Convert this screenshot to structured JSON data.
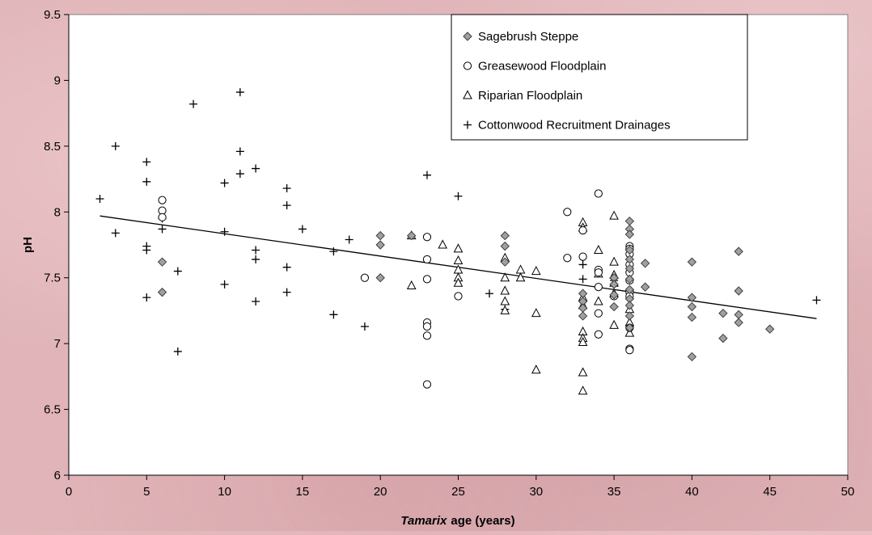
{
  "chart_data": {
    "type": "scatter",
    "title": "",
    "xlabel": "age (years)",
    "xlabel_italic_prefix": "Tamarix",
    "ylabel": "pH",
    "xlim": [
      0,
      50
    ],
    "ylim": [
      6,
      9.5
    ],
    "x_ticks": [
      "0",
      "5",
      "10",
      "15",
      "20",
      "25",
      "30",
      "35",
      "40",
      "45",
      "50"
    ],
    "y_ticks": [
      "6",
      "6.5",
      "7",
      "7.5",
      "8",
      "8.5",
      "9",
      "9.5"
    ],
    "grid": false,
    "legend_position": "top-right",
    "trendline": {
      "x": [
        2,
        48
      ],
      "y": [
        7.97,
        7.19
      ]
    },
    "series": [
      {
        "name": "Sagebrush Steppe",
        "marker": "diamond",
        "color": "#a0a0a0",
        "points": [
          [
            6,
            7.62
          ],
          [
            6,
            7.39
          ],
          [
            20,
            7.82
          ],
          [
            20,
            7.75
          ],
          [
            20,
            7.5
          ],
          [
            22,
            7.82
          ],
          [
            28,
            7.82
          ],
          [
            28,
            7.74
          ],
          [
            28,
            7.62
          ],
          [
            33,
            7.38
          ],
          [
            33,
            7.32
          ],
          [
            33,
            7.27
          ],
          [
            33,
            7.21
          ],
          [
            35,
            7.5
          ],
          [
            35,
            7.45
          ],
          [
            35,
            7.37
          ],
          [
            35,
            7.28
          ],
          [
            36,
            7.93
          ],
          [
            36,
            7.87
          ],
          [
            36,
            7.83
          ],
          [
            36,
            7.71
          ],
          [
            36,
            7.64
          ],
          [
            36,
            7.57
          ],
          [
            36,
            7.49
          ],
          [
            36,
            7.41
          ],
          [
            36,
            7.34
          ],
          [
            36,
            7.29
          ],
          [
            36,
            7.21
          ],
          [
            36,
            7.12
          ],
          [
            37,
            7.61
          ],
          [
            37,
            7.43
          ],
          [
            40,
            7.62
          ],
          [
            40,
            7.35
          ],
          [
            40,
            7.28
          ],
          [
            40,
            7.2
          ],
          [
            40,
            6.9
          ],
          [
            42,
            7.23
          ],
          [
            42,
            7.04
          ],
          [
            43,
            7.7
          ],
          [
            43,
            7.4
          ],
          [
            43,
            7.22
          ],
          [
            43,
            7.16
          ],
          [
            45,
            7.11
          ]
        ]
      },
      {
        "name": "Greasewood Floodplain",
        "marker": "circle",
        "color": "#ffffff",
        "points": [
          [
            6,
            8.09
          ],
          [
            6,
            8.01
          ],
          [
            6,
            7.96
          ],
          [
            19,
            7.5
          ],
          [
            23,
            7.81
          ],
          [
            23,
            7.64
          ],
          [
            23,
            7.49
          ],
          [
            23,
            7.16
          ],
          [
            23,
            7.13
          ],
          [
            23,
            7.06
          ],
          [
            23,
            6.69
          ],
          [
            25,
            7.36
          ],
          [
            32,
            8
          ],
          [
            32,
            7.65
          ],
          [
            33,
            7.86
          ],
          [
            33,
            7.66
          ],
          [
            34,
            8.14
          ],
          [
            34,
            7.56
          ],
          [
            34,
            7.54
          ],
          [
            34,
            7.43
          ],
          [
            34,
            7.23
          ],
          [
            34,
            7.07
          ],
          [
            35,
            7.36
          ],
          [
            36,
            7.74
          ],
          [
            36,
            7.72
          ],
          [
            36,
            7.68
          ],
          [
            36,
            7.6
          ],
          [
            36,
            7.54
          ],
          [
            36,
            7.48
          ],
          [
            36,
            7.4
          ],
          [
            36,
            7.39
          ],
          [
            36,
            7.36
          ],
          [
            36,
            7.12
          ],
          [
            36,
            6.96
          ],
          [
            36,
            6.95
          ]
        ]
      },
      {
        "name": "Riparian Floodplain",
        "marker": "triangle",
        "color": "#ffffff",
        "points": [
          [
            22,
            7.82
          ],
          [
            22,
            7.44
          ],
          [
            24,
            7.75
          ],
          [
            25,
            7.72
          ],
          [
            25,
            7.63
          ],
          [
            25,
            7.56
          ],
          [
            25,
            7.5
          ],
          [
            25,
            7.46
          ],
          [
            28,
            7.65
          ],
          [
            28,
            7.5
          ],
          [
            28,
            7.4
          ],
          [
            28,
            7.32
          ],
          [
            28,
            7.25
          ],
          [
            29,
            7.56
          ],
          [
            29,
            7.5
          ],
          [
            30,
            7.55
          ],
          [
            30,
            7.23
          ],
          [
            30,
            6.8
          ],
          [
            33,
            7.92
          ],
          [
            33,
            7.88
          ],
          [
            33,
            7.35
          ],
          [
            33,
            7.29
          ],
          [
            33,
            7.09
          ],
          [
            33,
            7.04
          ],
          [
            33,
            7.01
          ],
          [
            33,
            6.78
          ],
          [
            33,
            6.64
          ],
          [
            34,
            7.71
          ],
          [
            34,
            7.53
          ],
          [
            34,
            7.32
          ],
          [
            35,
            7.97
          ],
          [
            35,
            7.62
          ],
          [
            35,
            7.52
          ],
          [
            35,
            7.46
          ],
          [
            35,
            7.38
          ],
          [
            35,
            7.14
          ],
          [
            36,
            7.26
          ],
          [
            36,
            7.16
          ],
          [
            36,
            7.08
          ]
        ]
      },
      {
        "name": "Cottonwood Recruitment Drainages",
        "marker": "plus",
        "color": "#000000",
        "points": [
          [
            2,
            8.1
          ],
          [
            3,
            8.5
          ],
          [
            3,
            7.84
          ],
          [
            5,
            8.38
          ],
          [
            5,
            8.23
          ],
          [
            5,
            7.74
          ],
          [
            5,
            7.71
          ],
          [
            5,
            7.35
          ],
          [
            6,
            7.95
          ],
          [
            6,
            7.87
          ],
          [
            7,
            7.55
          ],
          [
            7,
            6.94
          ],
          [
            8,
            8.82
          ],
          [
            10,
            8.22
          ],
          [
            10,
            7.85
          ],
          [
            10,
            7.45
          ],
          [
            11,
            8.91
          ],
          [
            11,
            8.46
          ],
          [
            11,
            8.29
          ],
          [
            12,
            8.33
          ],
          [
            12,
            7.71
          ],
          [
            12,
            7.64
          ],
          [
            12,
            7.32
          ],
          [
            14,
            8.18
          ],
          [
            14,
            8.05
          ],
          [
            14,
            7.58
          ],
          [
            14,
            7.39
          ],
          [
            15,
            7.87
          ],
          [
            17,
            7.7
          ],
          [
            17,
            7.22
          ],
          [
            18,
            7.79
          ],
          [
            19,
            7.13
          ],
          [
            23,
            8.28
          ],
          [
            25,
            8.12
          ],
          [
            27,
            7.38
          ],
          [
            28,
            7.26
          ],
          [
            33,
            7.6
          ],
          [
            33,
            7.49
          ],
          [
            35,
            7.48
          ],
          [
            36,
            7.34
          ],
          [
            48,
            7.33
          ]
        ]
      }
    ]
  }
}
